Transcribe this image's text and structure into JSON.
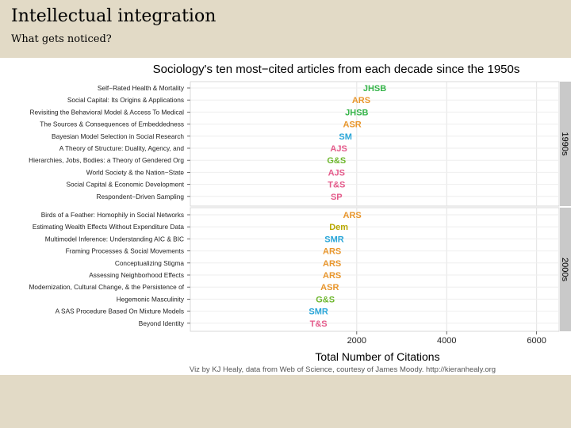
{
  "slide": {
    "title": "Intellectual integration",
    "subtitle": "What gets noticed?"
  },
  "chart_data": {
    "type": "scatter",
    "title": "Sociology's ten most−cited articles from each decade since the 1950s",
    "xlabel": "Total Number of Citations",
    "ylabel": "",
    "xlim": [
      -1700,
      6500
    ],
    "x_ticks": [
      2000,
      4000,
      6000
    ],
    "x_tick_labels": [
      "2000",
      "4000",
      "6000"
    ],
    "grid": true,
    "caption": "Viz by KJ Healy, data from Web of Science, courtesy of James Moody. http://kieranhealy.org",
    "journal_colors": {
      "JHSB": "#36b44a",
      "ARS": "#e8962c",
      "ASR": "#e8962c",
      "SM": "#2aa6d8",
      "SMR": "#2aa6d8",
      "AJS": "#e45a8a",
      "G&S": "#6eb72e",
      "T&S": "#e45a8a",
      "SP": "#e45a8a",
      "Dem": "#b8a800"
    },
    "panels": [
      {
        "label": "1990s",
        "articles": [
          {
            "title": "Self−Rated Health & Mortality",
            "journal": "JHSB",
            "citations": 2400
          },
          {
            "title": "Social Capital: Its Origins & Applications",
            "journal": "ARS",
            "citations": 2100
          },
          {
            "title": "Revisiting the Behavioral Model & Access To Medical",
            "journal": "JHSB",
            "citations": 2000
          },
          {
            "title": "The Sources & Consequences of Embeddedness",
            "journal": "ASR",
            "citations": 1900
          },
          {
            "title": "Bayesian Model Selection in Social Research",
            "journal": "SM",
            "citations": 1750
          },
          {
            "title": "A Theory of Structure: Duality, Agency, and",
            "journal": "AJS",
            "citations": 1600
          },
          {
            "title": "Hierarchies, Jobs, Bodies: a Theory of Gendered Org",
            "journal": "G&S",
            "citations": 1550
          },
          {
            "title": "World Society & the Nation−State",
            "journal": "AJS",
            "citations": 1550
          },
          {
            "title": "Social Capital & Economic Development",
            "journal": "T&S",
            "citations": 1550
          },
          {
            "title": "Respondent−Driven Sampling",
            "journal": "SP",
            "citations": 1550
          }
        ]
      },
      {
        "label": "2000s",
        "articles": [
          {
            "title": "Birds of a Feather: Homophily in Social Networks",
            "journal": "ARS",
            "citations": 1900
          },
          {
            "title": "Estimating Wealth Effects Without Expenditure Data",
            "journal": "Dem",
            "citations": 1600
          },
          {
            "title": "Multimodel Inference: Understanding AIC & BIC",
            "journal": "SMR",
            "citations": 1500
          },
          {
            "title": "Framing Processes & Social Movements",
            "journal": "ARS",
            "citations": 1450
          },
          {
            "title": "Conceptualizing Stigma",
            "journal": "ARS",
            "citations": 1450
          },
          {
            "title": "Assessing Neighborhood Effects",
            "journal": "ARS",
            "citations": 1450
          },
          {
            "title": "Modernization, Cultural Change, & the Persistence of",
            "journal": "ASR",
            "citations": 1400
          },
          {
            "title": "Hegemonic Masculinity",
            "journal": "G&S",
            "citations": 1300
          },
          {
            "title": "A SAS Procedure Based On Mixture Models",
            "journal": "SMR",
            "citations": 1150
          },
          {
            "title": "Beyond Identity",
            "journal": "T&S",
            "citations": 1150
          }
        ]
      }
    ]
  }
}
